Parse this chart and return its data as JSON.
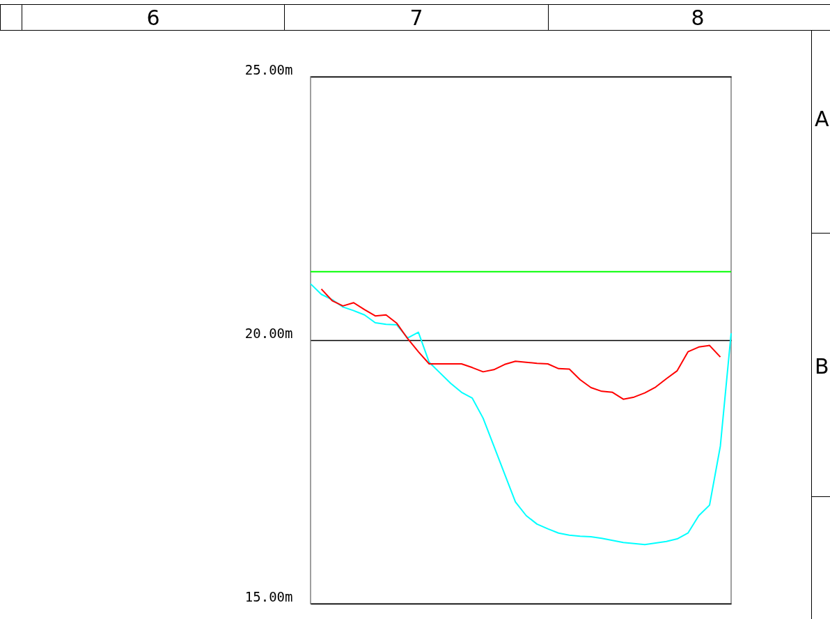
{
  "chart_data": {
    "type": "line",
    "annotations": [
      "6",
      "7",
      "8",
      "A",
      "B"
    ],
    "categories": [
      null,
      null,
      null,
      null,
      null,
      null,
      null,
      null,
      null,
      null,
      null,
      null,
      null,
      null,
      null,
      null,
      null,
      null,
      null,
      null,
      null,
      null,
      null,
      null,
      null,
      null,
      null,
      null,
      null,
      null,
      null,
      null,
      null,
      null,
      null,
      null,
      null,
      null,
      null,
      null
    ],
    "series": [
      {
        "color": "#00ffff",
        "values": [
          21.07,
          20.87,
          20.77,
          20.63,
          20.56,
          20.48,
          20.33,
          20.3,
          20.29,
          20.04,
          20.15,
          19.58,
          19.38,
          19.18,
          19.01,
          18.9,
          18.52,
          17.99,
          17.46,
          16.93,
          16.67,
          16.51,
          16.42,
          16.34,
          16.3,
          16.28,
          16.27,
          16.24,
          16.2,
          16.16,
          16.14,
          16.12,
          16.15,
          16.18,
          16.23,
          16.34,
          16.67,
          16.87,
          17.99,
          20.13
        ]
      },
      {
        "color": "#ff0000",
        "values": [
          null,
          20.97,
          20.75,
          20.65,
          20.71,
          20.58,
          20.46,
          20.48,
          20.32,
          20.03,
          19.78,
          19.55,
          19.55,
          19.55,
          19.55,
          19.48,
          19.4,
          19.44,
          19.54,
          19.6,
          19.58,
          19.56,
          19.55,
          19.46,
          19.45,
          19.25,
          19.1,
          19.03,
          19.01,
          18.88,
          18.92,
          19.0,
          19.11,
          19.27,
          19.42,
          19.78,
          19.87,
          19.9,
          19.68,
          null
        ]
      }
    ],
    "ylim": [
      15,
      25
    ],
    "yticks": [
      {
        "value": 15,
        "label": "15.00m"
      },
      {
        "value": 20,
        "label": "20.00m"
      },
      {
        "value": 25,
        "label": "25.00m"
      }
    ],
    "grid": "y",
    "tick_labels": "y",
    "ref_lines": [
      {
        "axis": "y",
        "value": 21.3,
        "color": "#00ff00"
      }
    ]
  }
}
